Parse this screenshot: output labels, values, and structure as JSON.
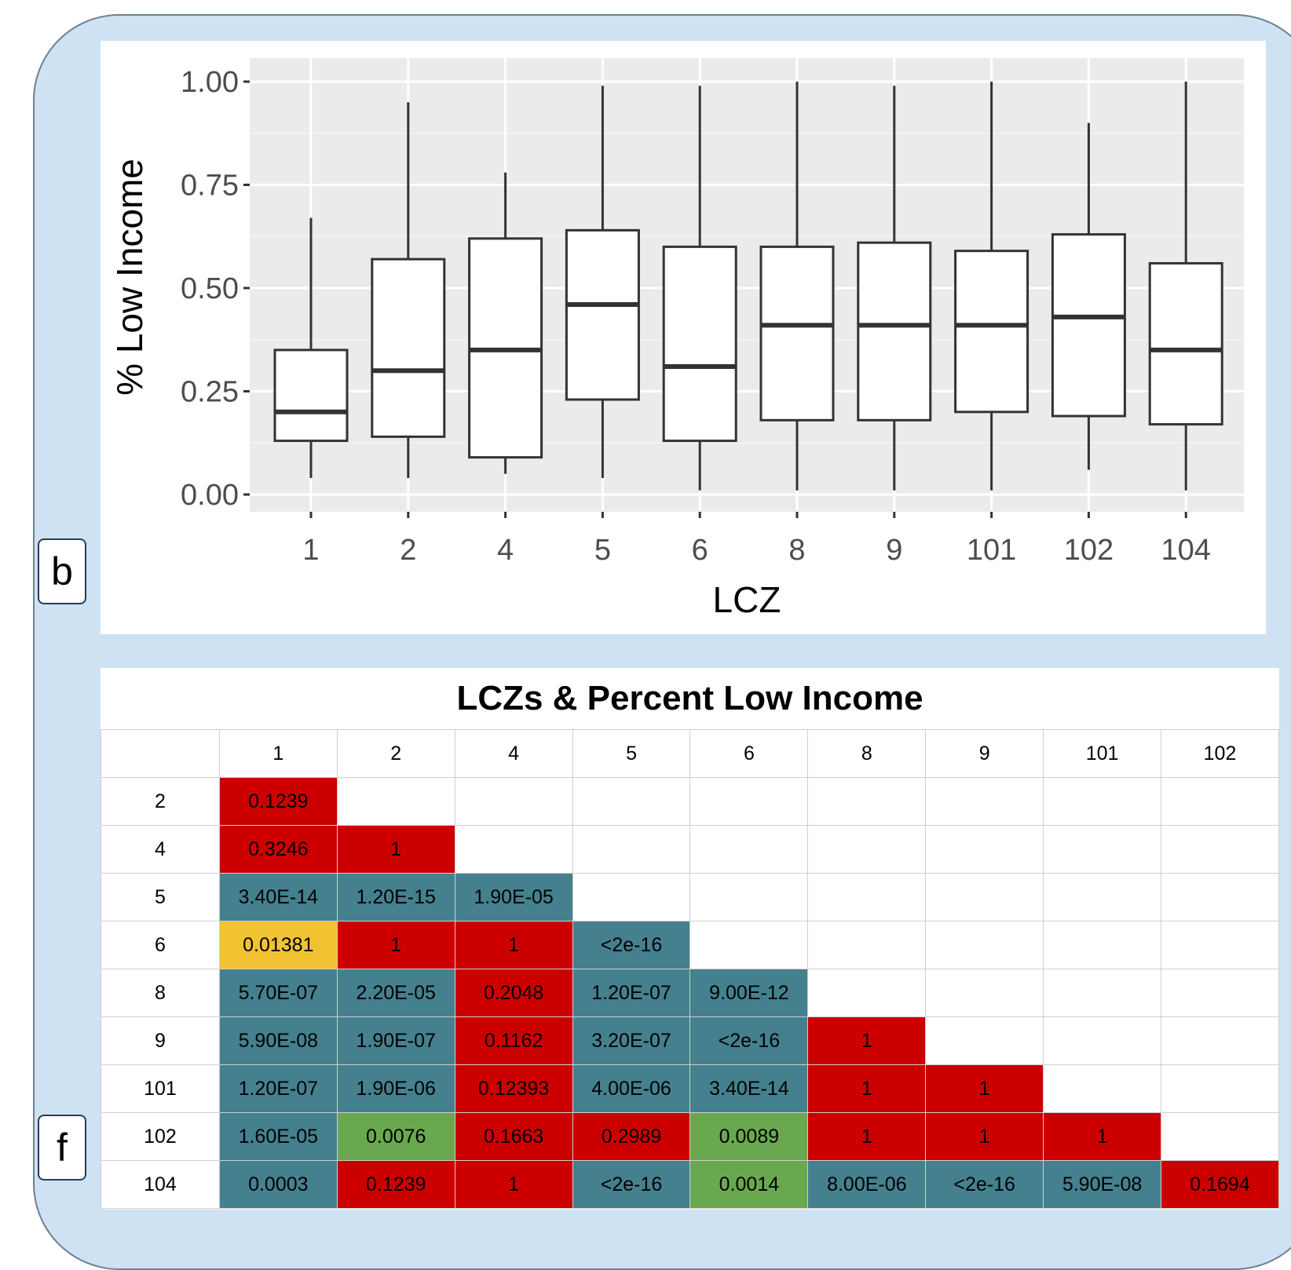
{
  "panel_labels": {
    "b": "b",
    "f": "f"
  },
  "colors": {
    "sig_teal": "#45808e",
    "nonsig_red": "#cc0000",
    "yellow": "#f1c232",
    "green": "#6aa84f",
    "plot_bg": "#ebebeb"
  },
  "chart_data": {
    "type": "boxplot",
    "xlabel": "LCZ",
    "ylabel": "% Low Income",
    "ylim": [
      0,
      1
    ],
    "yticks": [
      "0.00",
      "0.25",
      "0.50",
      "0.75",
      "1.00"
    ],
    "categories": [
      "1",
      "2",
      "4",
      "5",
      "6",
      "8",
      "9",
      "101",
      "102",
      "104"
    ],
    "boxes": [
      {
        "min": 0.04,
        "q1": 0.13,
        "median": 0.2,
        "q3": 0.35,
        "max": 0.67
      },
      {
        "min": 0.04,
        "q1": 0.14,
        "median": 0.3,
        "q3": 0.57,
        "max": 0.95
      },
      {
        "min": 0.05,
        "q1": 0.09,
        "median": 0.35,
        "q3": 0.62,
        "max": 0.78
      },
      {
        "min": 0.04,
        "q1": 0.23,
        "median": 0.46,
        "q3": 0.64,
        "max": 0.99
      },
      {
        "min": 0.01,
        "q1": 0.13,
        "median": 0.31,
        "q3": 0.6,
        "max": 0.99
      },
      {
        "min": 0.01,
        "q1": 0.18,
        "median": 0.41,
        "q3": 0.6,
        "max": 1.0
      },
      {
        "min": 0.01,
        "q1": 0.18,
        "median": 0.41,
        "q3": 0.61,
        "max": 0.99
      },
      {
        "min": 0.01,
        "q1": 0.2,
        "median": 0.41,
        "q3": 0.59,
        "max": 1.0
      },
      {
        "min": 0.06,
        "q1": 0.19,
        "median": 0.43,
        "q3": 0.63,
        "max": 0.9
      },
      {
        "min": 0.01,
        "q1": 0.17,
        "median": 0.35,
        "q3": 0.56,
        "max": 1.0
      }
    ]
  },
  "table": {
    "title": "LCZs & Percent Low Income",
    "columns": [
      "1",
      "2",
      "4",
      "5",
      "6",
      "8",
      "9",
      "101",
      "102"
    ],
    "rows": [
      {
        "label": "2",
        "cells": [
          {
            "v": "0.1239",
            "c": "red"
          }
        ]
      },
      {
        "label": "4",
        "cells": [
          {
            "v": "0.3246",
            "c": "red"
          },
          {
            "v": "1",
            "c": "red"
          }
        ]
      },
      {
        "label": "5",
        "cells": [
          {
            "v": "3.40E-14",
            "c": "teal"
          },
          {
            "v": "1.20E-15",
            "c": "teal"
          },
          {
            "v": "1.90E-05",
            "c": "teal"
          }
        ]
      },
      {
        "label": "6",
        "cells": [
          {
            "v": "0.01381",
            "c": "yellow"
          },
          {
            "v": "1",
            "c": "red"
          },
          {
            "v": "1",
            "c": "red"
          },
          {
            "v": "<2e-16",
            "c": "teal"
          }
        ]
      },
      {
        "label": "8",
        "cells": [
          {
            "v": "5.70E-07",
            "c": "teal"
          },
          {
            "v": "2.20E-05",
            "c": "teal"
          },
          {
            "v": "0.2048",
            "c": "red"
          },
          {
            "v": "1.20E-07",
            "c": "teal"
          },
          {
            "v": "9.00E-12",
            "c": "teal"
          }
        ]
      },
      {
        "label": "9",
        "cells": [
          {
            "v": "5.90E-08",
            "c": "teal"
          },
          {
            "v": "1.90E-07",
            "c": "teal"
          },
          {
            "v": "0.1162",
            "c": "red"
          },
          {
            "v": "3.20E-07",
            "c": "teal"
          },
          {
            "v": "<2e-16",
            "c": "teal"
          },
          {
            "v": "1",
            "c": "red"
          }
        ]
      },
      {
        "label": "101",
        "cells": [
          {
            "v": "1.20E-07",
            "c": "teal"
          },
          {
            "v": "1.90E-06",
            "c": "teal"
          },
          {
            "v": "0.12393",
            "c": "red"
          },
          {
            "v": "4.00E-06",
            "c": "teal"
          },
          {
            "v": "3.40E-14",
            "c": "teal"
          },
          {
            "v": "1",
            "c": "red"
          },
          {
            "v": "1",
            "c": "red"
          }
        ]
      },
      {
        "label": "102",
        "cells": [
          {
            "v": "1.60E-05",
            "c": "teal"
          },
          {
            "v": "0.0076",
            "c": "green"
          },
          {
            "v": "0.1663",
            "c": "red"
          },
          {
            "v": "0.2989",
            "c": "red"
          },
          {
            "v": "0.0089",
            "c": "green"
          },
          {
            "v": "1",
            "c": "red"
          },
          {
            "v": "1",
            "c": "red"
          },
          {
            "v": "1",
            "c": "red"
          }
        ]
      },
      {
        "label": "104",
        "cells": [
          {
            "v": "0.0003",
            "c": "teal"
          },
          {
            "v": "0.1239",
            "c": "red"
          },
          {
            "v": "1",
            "c": "red"
          },
          {
            "v": "<2e-16",
            "c": "teal"
          },
          {
            "v": "0.0014",
            "c": "green"
          },
          {
            "v": "8.00E-06",
            "c": "teal"
          },
          {
            "v": "<2e-16",
            "c": "teal"
          },
          {
            "v": "5.90E-08",
            "c": "teal"
          },
          {
            "v": "0.1694",
            "c": "red"
          }
        ]
      }
    ]
  }
}
